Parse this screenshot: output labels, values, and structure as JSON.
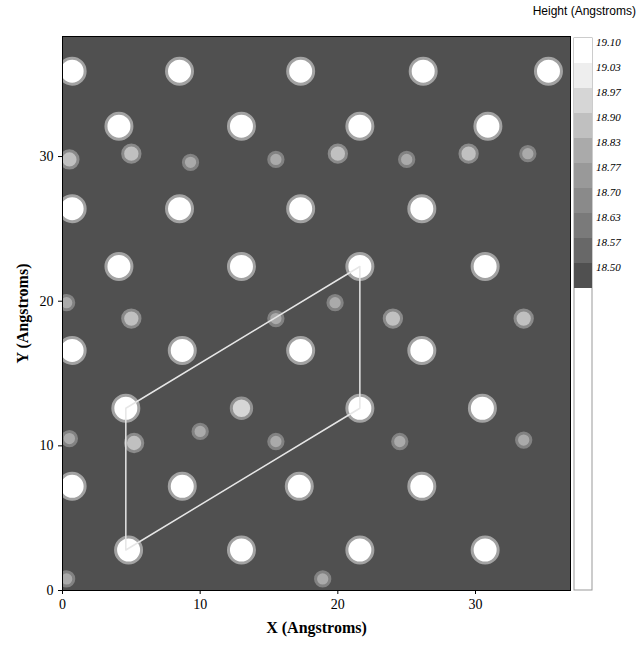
{
  "chart_data": {
    "type": "scatter",
    "x_label": "X (Angstroms)",
    "y_label": "Y (Angstroms)",
    "xlim": [
      0,
      36.9
    ],
    "ylim": [
      0,
      38.3
    ],
    "xticks": [
      0,
      10,
      20,
      30
    ],
    "yticks": [
      0,
      10,
      20,
      30
    ],
    "points": {
      "x": [
        0.7,
        8.5,
        17.3,
        26.2,
        35.3,
        4.1,
        13.0,
        21.6,
        30.9,
        0.7,
        8.5,
        17.3,
        26.1,
        4.1,
        13.0,
        21.6,
        30.7,
        0.7,
        8.7,
        17.3,
        26.1,
        4.6,
        21.6,
        30.5,
        0.7,
        8.7,
        17.2,
        26.1,
        4.8,
        13.0,
        21.6,
        30.7,
        0.5,
        5.0,
        9.3,
        15.5,
        20.0,
        25.0,
        29.5,
        33.8,
        0.3,
        5.0,
        15.5,
        19.8,
        24.0,
        33.5,
        0.5,
        5.2,
        10.0,
        13.0,
        15.5,
        24.5,
        33.5,
        0.3,
        18.9
      ],
      "y": [
        35.9,
        35.9,
        35.9,
        35.9,
        35.9,
        32.1,
        32.1,
        32.1,
        32.1,
        26.4,
        26.4,
        26.4,
        26.4,
        22.4,
        22.4,
        22.4,
        22.4,
        16.6,
        16.6,
        16.6,
        16.6,
        12.6,
        12.6,
        12.6,
        7.2,
        7.2,
        7.2,
        7.2,
        2.8,
        2.8,
        2.8,
        2.8,
        29.8,
        30.2,
        29.6,
        29.8,
        30.2,
        29.8,
        30.2,
        30.2,
        19.9,
        18.8,
        18.8,
        19.9,
        18.8,
        18.8,
        10.5,
        10.2,
        11.0,
        12.6,
        10.3,
        10.3,
        10.4,
        0.8,
        0.8
      ],
      "height": [
        19.1,
        19.1,
        19.1,
        19.1,
        19.1,
        19.1,
        19.1,
        19.1,
        19.1,
        19.1,
        19.1,
        19.1,
        19.1,
        19.1,
        19.1,
        19.1,
        19.1,
        19.1,
        19.1,
        19.1,
        19.1,
        19.1,
        19.1,
        19.1,
        19.1,
        19.1,
        19.1,
        19.1,
        19.1,
        19.1,
        19.1,
        19.1,
        18.9,
        18.9,
        18.83,
        18.83,
        18.9,
        18.83,
        18.9,
        18.83,
        18.83,
        18.9,
        18.83,
        18.83,
        18.9,
        18.9,
        18.83,
        18.9,
        18.83,
        18.97,
        18.83,
        18.83,
        18.83,
        18.83,
        18.83
      ]
    },
    "unit_cell": {
      "x": [
        4.6,
        21.6,
        21.6,
        4.6
      ],
      "y": [
        12.6,
        22.4,
        12.6,
        2.8
      ]
    },
    "colorbar": {
      "title": "Height (Angstroms)",
      "ticks": [
        {
          "value": 19.1,
          "label": "19.10"
        },
        {
          "value": 19.03,
          "label": "19.03"
        },
        {
          "value": 18.97,
          "label": "18.97"
        },
        {
          "value": 18.9,
          "label": "18.90"
        },
        {
          "value": 18.83,
          "label": "18.83"
        },
        {
          "value": 18.77,
          "label": "18.77"
        },
        {
          "value": 18.7,
          "label": "18.70"
        },
        {
          "value": 18.63,
          "label": "18.63"
        },
        {
          "value": 18.57,
          "label": "18.57"
        },
        {
          "value": 18.5,
          "label": "18.50"
        }
      ],
      "colors": [
        "#ffffff",
        "#eeeeee",
        "#d6d6d6",
        "#c0c0c0",
        "#aaaaaa",
        "#999999",
        "#8a8a8a",
        "#7a7a7a",
        "#686868",
        "#505050"
      ]
    }
  }
}
